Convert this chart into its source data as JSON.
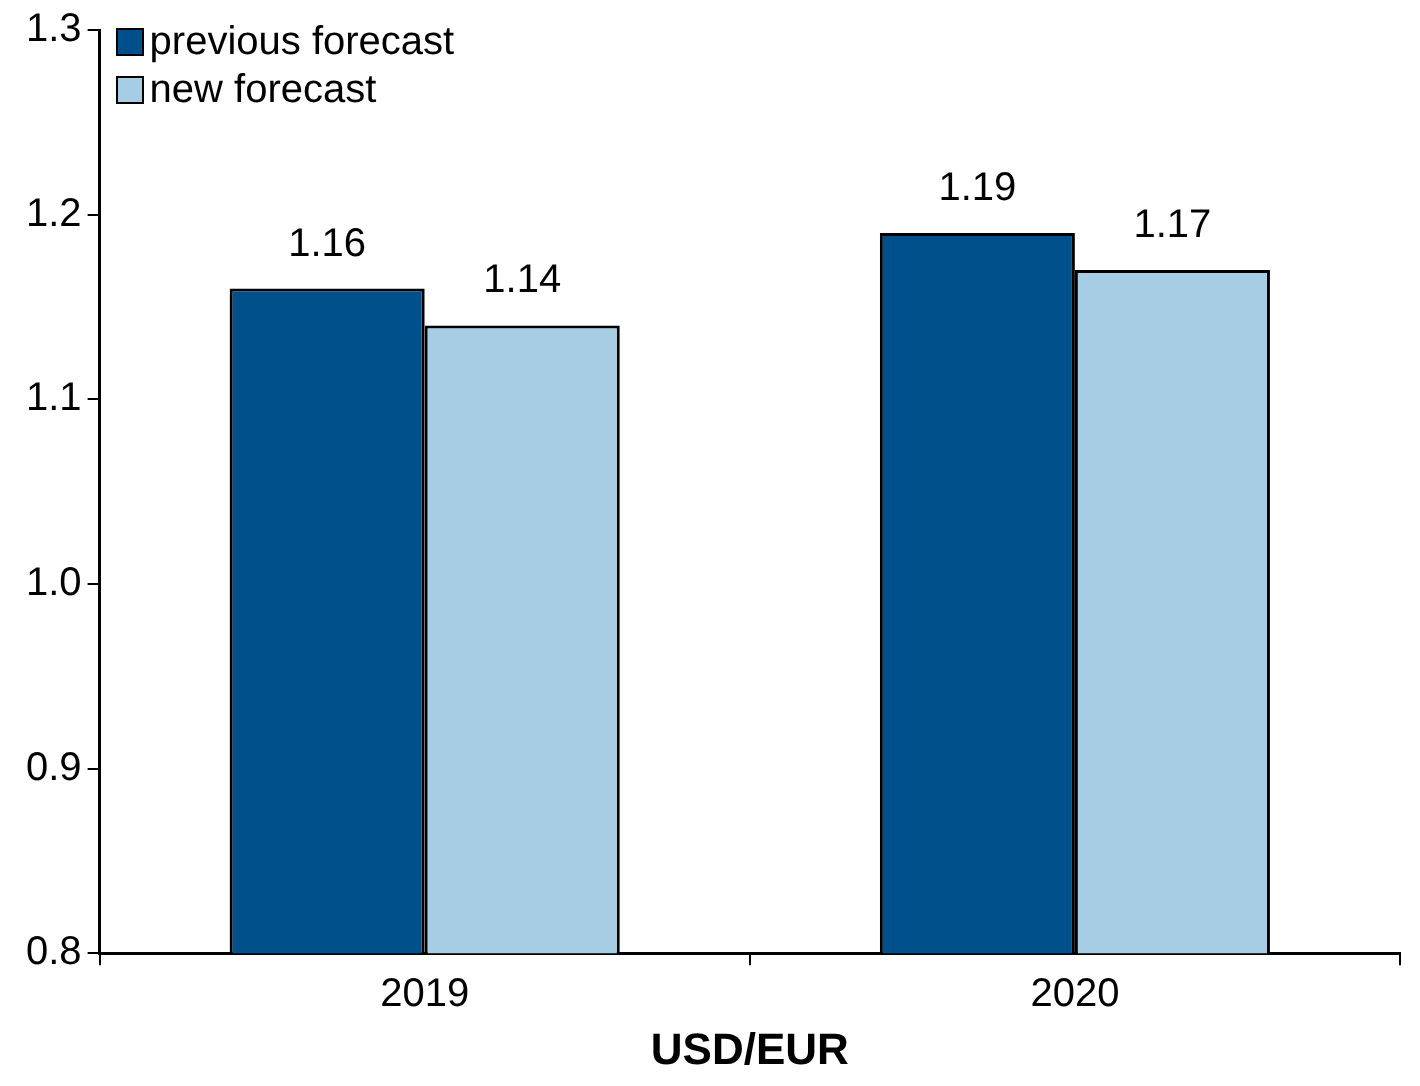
{
  "chart_data": {
    "type": "bar",
    "xlabel": "USD/EUR",
    "categories": [
      "2019",
      "2020"
    ],
    "series": [
      {
        "name": "previous forecast",
        "color": "#00508c",
        "values": [
          1.16,
          1.19
        ]
      },
      {
        "name": "new forecast",
        "color": "#a6cde4",
        "values": [
          1.14,
          1.17
        ]
      }
    ],
    "ylim": [
      0.8,
      1.3
    ],
    "yticks": [
      {
        "value": 0.8,
        "label": "0.8"
      },
      {
        "value": 0.9,
        "label": "0.9"
      },
      {
        "value": 1.0,
        "label": "1.0"
      },
      {
        "value": 1.1,
        "label": "1.1"
      },
      {
        "value": 1.2,
        "label": "1.2"
      },
      {
        "value": 1.3,
        "label": "1.3"
      }
    ],
    "grid": false,
    "legend": "top left",
    "data_labels": true
  }
}
